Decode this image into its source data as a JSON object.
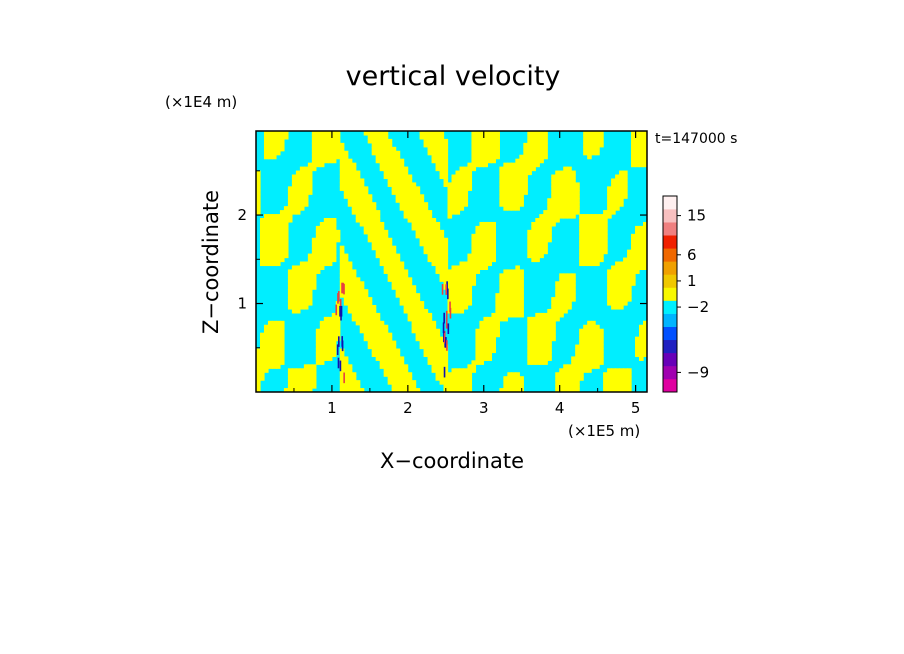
{
  "chart_data": {
    "type": "heatmap",
    "title": "vertical velocity",
    "xlabel": "X−coordinate",
    "ylabel": "Z−coordinate",
    "x_scale_label": "(×1E5 m)",
    "y_scale_label": "(×1E4 m)",
    "time_label": "t=147000 s",
    "xlim": [
      0,
      5.15
    ],
    "ylim": [
      0,
      2.95
    ],
    "x_ticks": [
      1,
      2,
      3,
      4,
      5
    ],
    "y_ticks": [
      1,
      2
    ],
    "colorbar": {
      "levels": [
        {
          "color": "#e000a0"
        },
        {
          "color": "#a000b0"
        },
        {
          "color": "#6800b8"
        },
        {
          "color": "#2020c0"
        },
        {
          "color": "#0050ff"
        },
        {
          "color": "#00b4ff"
        },
        {
          "color": "#00f0ff"
        },
        {
          "color": "#f8f800"
        },
        {
          "color": "#f0c800"
        },
        {
          "color": "#f0a000"
        },
        {
          "color": "#f06800"
        },
        {
          "color": "#f02000"
        },
        {
          "color": "#f08080"
        },
        {
          "color": "#f8c0c0"
        },
        {
          "color": "#fff0f0"
        }
      ],
      "tick_labels": [
        {
          "text": "−9",
          "level": 1
        },
        {
          "text": "−2",
          "level": 6
        },
        {
          "text": "1",
          "level": 8
        },
        {
          "text": "6",
          "level": 10
        },
        {
          "text": "15",
          "level": 13
        }
      ]
    },
    "field_colors": {
      "positive": "#ffff00",
      "negative": "#00eeff",
      "strong_pos": "#e84040",
      "strong_neg": "#1010b0"
    },
    "grid": false
  }
}
